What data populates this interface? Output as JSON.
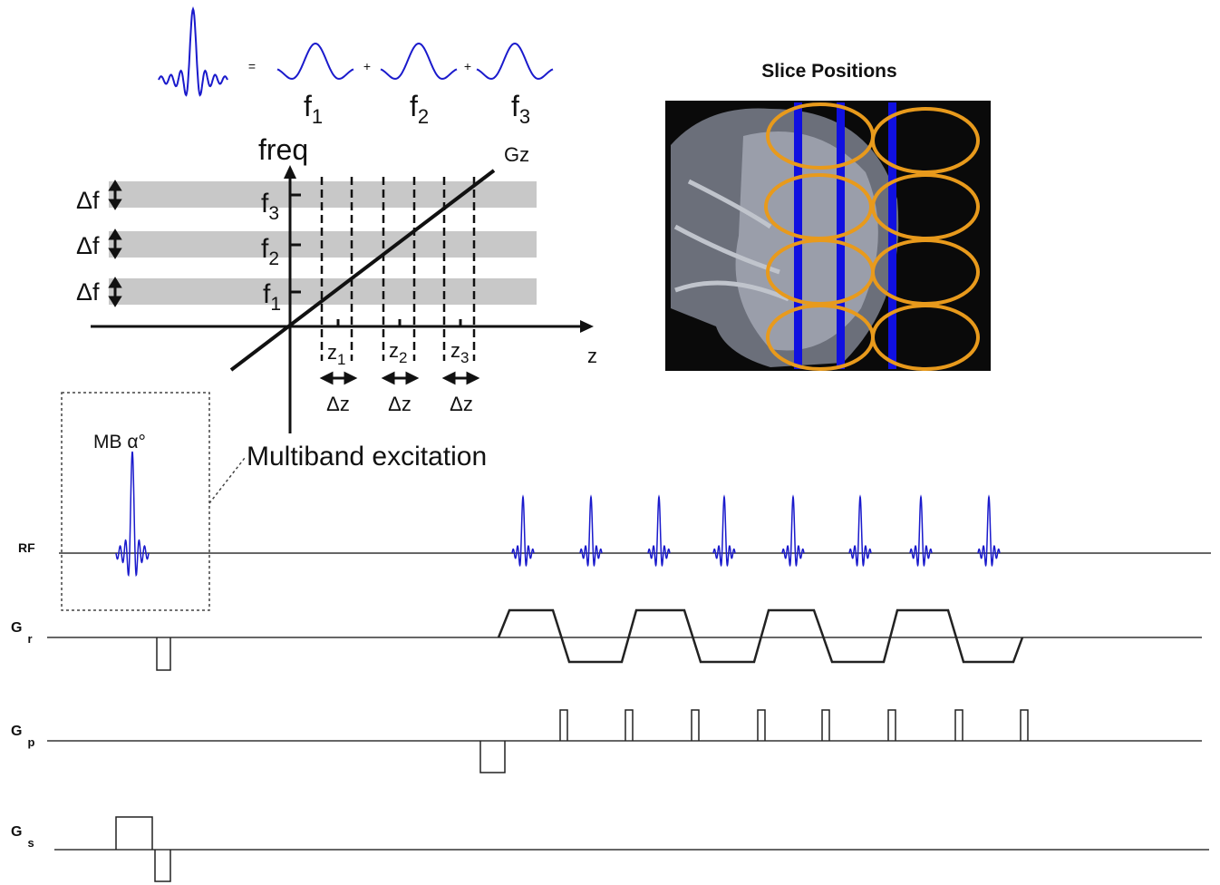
{
  "equation": {
    "operators": [
      "=",
      "+",
      "+"
    ],
    "components": [
      {
        "main": "f",
        "sub": "1"
      },
      {
        "main": "f",
        "sub": "2"
      },
      {
        "main": "f",
        "sub": "3"
      }
    ]
  },
  "frequency_diagram": {
    "y_axis_label": "freq",
    "gradient_label": "Gz",
    "x_axis_label": "z",
    "bandwidth_labels": [
      "Δf",
      "Δf",
      "Δf"
    ],
    "frequency_labels": [
      {
        "main": "f",
        "sub": "3"
      },
      {
        "main": "f",
        "sub": "2"
      },
      {
        "main": "f",
        "sub": "1"
      }
    ],
    "positions": [
      {
        "main": "z",
        "sub": "1"
      },
      {
        "main": "z",
        "sub": "2"
      },
      {
        "main": "z",
        "sub": "3"
      }
    ],
    "thickness_labels": [
      "Δz",
      "Δz",
      "Δz"
    ]
  },
  "slice_image": {
    "title": "Slice Positions"
  },
  "excitation": {
    "pulse_label": "MB α°",
    "callout": "Multiband excitation"
  },
  "sequence": {
    "channels": [
      {
        "main": "RF"
      },
      {
        "main": "G",
        "sub": "r"
      },
      {
        "main": "G",
        "sub": "p"
      },
      {
        "main": "G",
        "sub": "s"
      }
    ]
  }
}
